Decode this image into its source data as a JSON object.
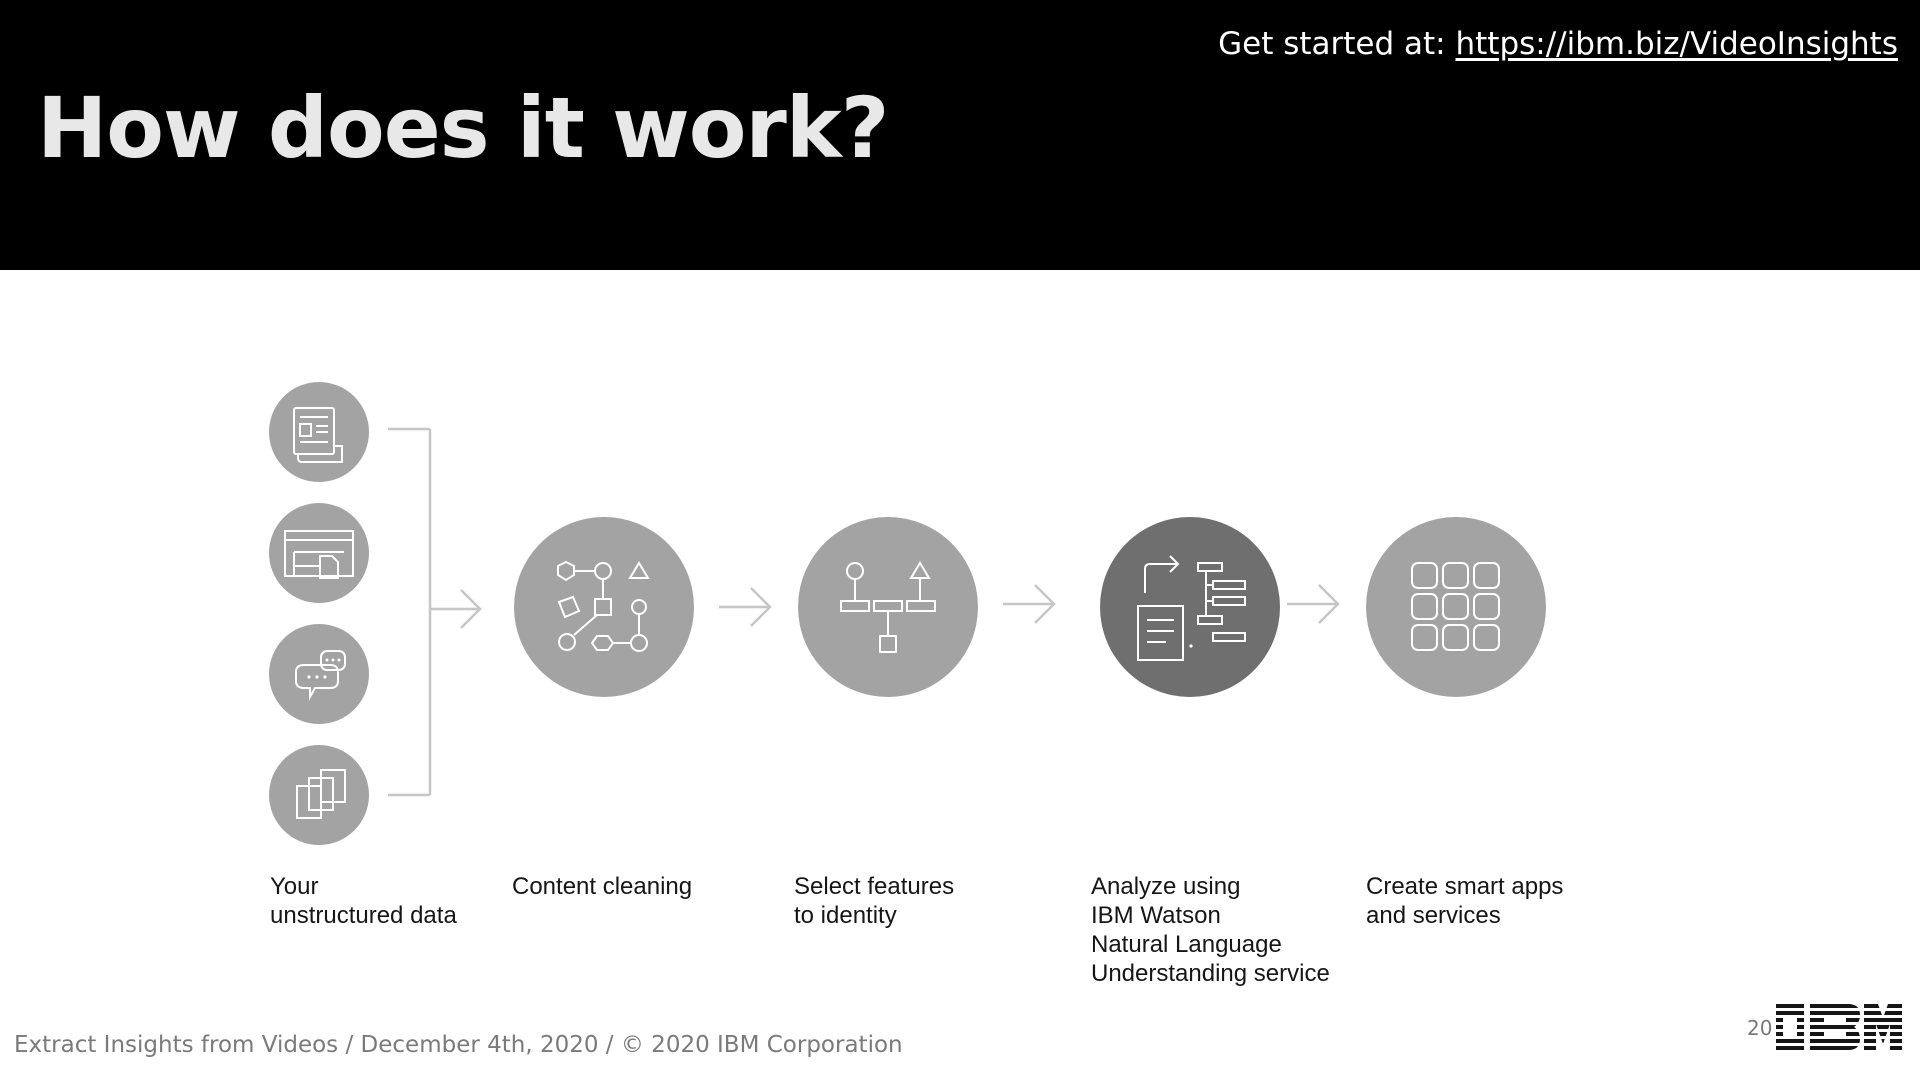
{
  "slide": {
    "title": "How does it work?",
    "get_started_prefix": "Get started at: ",
    "get_started_link": "https://ibm.biz/VideoInsights"
  },
  "flow": {
    "sources": [
      {
        "icon": "newspaper-icon"
      },
      {
        "icon": "web-page-icon"
      },
      {
        "icon": "chat-bubbles-icon"
      },
      {
        "icon": "documents-icon"
      }
    ],
    "steps": [
      {
        "label": "Your\nunstructured data",
        "icon": "multiple-sources-icon"
      },
      {
        "label": "Content cleaning",
        "icon": "shapes-flow-icon"
      },
      {
        "label": "Select features\nto identity",
        "icon": "feature-tree-icon"
      },
      {
        "label": "Analyze using\nIBM Watson\nNatural Language\nUnderstanding service",
        "icon": "document-analysis-icon"
      },
      {
        "label": "Create smart apps\nand services",
        "icon": "app-grid-icon"
      }
    ],
    "colors": {
      "circle": "#a3a3a3",
      "circle_highlight": "#6f6f6f",
      "connector": "#c6c6c6",
      "icon_stroke": "#ffffff"
    }
  },
  "footer": {
    "text": "Extract Insights from Videos / December 4th, 2020 / © 2020 IBM Corporation",
    "page_number": "20",
    "logo": "IBM"
  }
}
